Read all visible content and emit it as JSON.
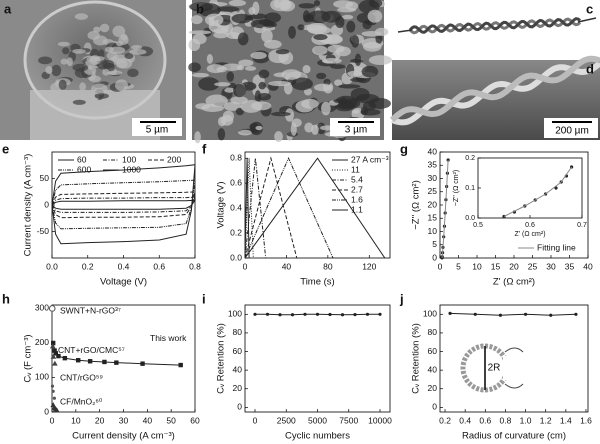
{
  "panel_labels": [
    "a",
    "b",
    "c",
    "d",
    "e",
    "f",
    "g",
    "h",
    "i",
    "j"
  ],
  "scale_bars": [
    "5 µm",
    "3 µm",
    "200 µm"
  ],
  "inset_label": "2R",
  "chart_data": [
    {
      "type": "line",
      "xlabel": "Voltage (V)",
      "ylabel": "Current density (A cm⁻³)",
      "xlim": [
        0,
        0.8
      ],
      "xticks": [
        {
          "value": 0,
          "label": "0.0"
        },
        0.2,
        0.4,
        0.6,
        0.8
      ],
      "ylim": [
        -100,
        100
      ],
      "yticks": [
        -50,
        0,
        50
      ],
      "legend": "top",
      "x": [
        0,
        0.02,
        0.05,
        0.2,
        0.4,
        0.6,
        0.75,
        0.8,
        0.78,
        0.75,
        0.6,
        0.4,
        0.2,
        0.05,
        0.02,
        0
      ],
      "series": [
        {
          "name": "60",
          "color": "#222",
          "style": "solid",
          "values": [
            0,
            5,
            7,
            7,
            8,
            8,
            8,
            9,
            -1,
            -6,
            -8,
            -8,
            -8,
            -8,
            -6,
            0
          ]
        },
        {
          "name": "100",
          "color": "#222",
          "style": "dashdot",
          "values": [
            0,
            9,
            12,
            13,
            13,
            14,
            14,
            15,
            -2,
            -11,
            -13,
            -14,
            -14,
            -14,
            -11,
            0
          ]
        },
        {
          "name": "200",
          "color": "#222",
          "style": "dashed",
          "values": [
            0,
            15,
            20,
            21,
            22,
            23,
            24,
            25,
            -3,
            -18,
            -22,
            -23,
            -23,
            -24,
            -18,
            0
          ]
        },
        {
          "name": "600",
          "color": "#222",
          "style": "dashdotdot",
          "values": [
            0,
            28,
            38,
            40,
            42,
            44,
            46,
            47,
            -6,
            -35,
            -42,
            -43,
            -44,
            -45,
            -34,
            0
          ]
        },
        {
          "name": "1000",
          "color": "#222",
          "style": "solid",
          "values": [
            0,
            45,
            60,
            63,
            66,
            70,
            74,
            76,
            -10,
            -55,
            -66,
            -69,
            -71,
            -73,
            -55,
            0
          ]
        }
      ]
    },
    {
      "type": "line",
      "xlabel": "Time (s)",
      "ylabel": "Voltage (V)",
      "xlim": [
        0,
        140
      ],
      "xticks": [
        0,
        40,
        80,
        120
      ],
      "ylim": [
        0,
        0.85
      ],
      "yticks": [
        {
          "value": 0,
          "label": "0.0"
        },
        0.2,
        0.4,
        0.6,
        0.8
      ],
      "legend": "top-right",
      "series": [
        {
          "name": "27 A cm⁻³",
          "color": "#222",
          "style": "solid",
          "x": [
            0,
            2,
            4
          ],
          "values": [
            0,
            0.8,
            0
          ]
        },
        {
          "name": "11",
          "color": "#222",
          "style": "dotted",
          "x": [
            0,
            4,
            8
          ],
          "values": [
            0,
            0.8,
            0
          ]
        },
        {
          "name": "5.4",
          "color": "#222",
          "style": "dashdot",
          "x": [
            0,
            10,
            20
          ],
          "values": [
            0,
            0.8,
            0
          ]
        },
        {
          "name": "2.7",
          "color": "#222",
          "style": "dashed",
          "x": [
            0,
            25,
            50
          ],
          "values": [
            0,
            0.8,
            0
          ]
        },
        {
          "name": "1.6",
          "color": "#222",
          "style": "dashdotdot",
          "x": [
            0,
            42,
            85
          ],
          "values": [
            0,
            0.8,
            0
          ]
        },
        {
          "name": "1.1",
          "color": "#222",
          "style": "solid",
          "x": [
            0,
            70,
            135
          ],
          "values": [
            0,
            0.8,
            0
          ]
        }
      ]
    },
    {
      "type": "scatter",
      "xlabel": "Z' (Ω cm²)",
      "ylabel": "−Z'' (Ω cm²)",
      "xlim": [
        0,
        40
      ],
      "xticks": [
        0,
        5,
        10,
        15,
        20,
        25,
        30,
        35,
        40
      ],
      "ylim": [
        0,
        40
      ],
      "yticks": [
        0,
        5,
        10,
        15,
        20,
        25,
        30,
        35,
        40
      ],
      "legend": "bottom-right",
      "series": [
        {
          "color": "#222",
          "marker": "circle",
          "x": [
            0.55,
            0.6,
            0.7,
            0.8,
            1.0,
            1.2,
            1.4,
            1.6,
            1.8,
            2.0,
            2.2
          ],
          "values": [
            0.05,
            0.5,
            2,
            4,
            8,
            12,
            17,
            22,
            27,
            32,
            37
          ]
        },
        {
          "name": "Fitting line",
          "color": "#888",
          "style": "solid",
          "x": [
            0.55,
            0.7,
            1.0,
            1.4,
            1.8,
            2.2
          ],
          "values": [
            0,
            2,
            8,
            17,
            27,
            37
          ]
        }
      ],
      "inset": {
        "type": "scatter",
        "xlabel": "Z' (Ω cm²)",
        "ylabel": "−Z'' (Ω cm²)",
        "xlim": [
          0.5,
          0.7
        ],
        "xticks": [
          0.5,
          0.6,
          0.7
        ],
        "ylim": [
          0,
          0.2
        ],
        "yticks": [
          {
            "value": 0,
            "label": "0.0"
          },
          0.1,
          0.2
        ],
        "series": [
          {
            "color": "#222",
            "marker": "circle",
            "x": [
              0.55,
              0.57,
              0.59,
              0.61,
              0.63,
              0.65,
              0.66,
              0.67,
              0.68
            ],
            "values": [
              0.005,
              0.02,
              0.04,
              0.06,
              0.08,
              0.1,
              0.12,
              0.14,
              0.17
            ]
          },
          {
            "color": "#888",
            "style": "solid",
            "x": [
              0.55,
              0.59,
              0.63,
              0.66,
              0.68
            ],
            "values": [
              0.005,
              0.04,
              0.08,
              0.12,
              0.17
            ]
          }
        ]
      }
    },
    {
      "type": "scatter",
      "xlabel": "Current density (A cm⁻³)",
      "ylabel": "Cᵥ (F cm⁻³)",
      "xlim": [
        0,
        60
      ],
      "xticks": [
        0,
        10,
        20,
        30,
        40,
        50,
        60
      ],
      "ylim": [
        0,
        310
      ],
      "yticks": [
        0,
        100,
        200,
        300
      ],
      "legend": "annotate",
      "series": [
        {
          "name": "This work",
          "color": "#222",
          "marker": "square",
          "style": "solid",
          "x": [
            0.5,
            1.1,
            1.6,
            2.7,
            5.4,
            11,
            16,
            22,
            27,
            38,
            54
          ],
          "values": [
            200,
            178,
            170,
            162,
            156,
            150,
            147,
            145,
            143,
            140,
            136
          ]
        },
        {
          "name": "SWNT+N-rGO³⁷",
          "color": "#555",
          "marker": "open-circle",
          "x": [
            0.1
          ],
          "values": [
            300
          ]
        },
        {
          "name": "CNT+rGO/CMC⁵⁷",
          "color": "#444",
          "marker": "triangle",
          "x": [
            0.3,
            0.6,
            1.2
          ],
          "values": [
            190,
            160,
            140
          ]
        },
        {
          "name": "CNT/rGO⁵⁹",
          "color": "#555",
          "marker": "circle",
          "x": [
            0.2,
            0.5,
            1
          ],
          "values": [
            75,
            60,
            40
          ]
        },
        {
          "name": "CF/MnO₂⁶⁰",
          "color": "#333",
          "marker": "triangle",
          "x": [
            0.5,
            1,
            1.5,
            2
          ],
          "values": [
            20,
            12,
            8,
            5
          ]
        }
      ]
    },
    {
      "type": "line",
      "xlabel": "Cyclic numbers",
      "ylabel": "Cᵥ Retention (%)",
      "xlim": [
        -800,
        10800
      ],
      "xticks": [
        0,
        2500,
        5000,
        7500,
        10000
      ],
      "ylim": [
        -5,
        110
      ],
      "yticks": [
        0,
        20,
        40,
        60,
        80,
        100
      ],
      "series": [
        {
          "color": "#222",
          "style": "solid",
          "marker": "circle",
          "x": [
            0,
            1000,
            2000,
            3000,
            4000,
            5000,
            6000,
            7000,
            8000,
            9000,
            10000
          ],
          "values": [
            100,
            100,
            99.5,
            99.5,
            100,
            100,
            99.8,
            99.5,
            99.7,
            100,
            100
          ]
        }
      ]
    },
    {
      "type": "line",
      "xlabel": "Radius of curvature (cm)",
      "ylabel": "Cᵥ Retention (%)",
      "xlim": [
        0.15,
        1.62
      ],
      "xticks": [
        0.2,
        0.4,
        0.6,
        0.8,
        {
          "value": 1,
          "label": "1.0"
        },
        1.2,
        1.4,
        1.6
      ],
      "ylim": [
        -5,
        110
      ],
      "yticks": [
        0,
        20,
        40,
        60,
        80,
        100
      ],
      "series": [
        {
          "color": "#222",
          "style": "solid",
          "marker": "circle",
          "x": [
            0.25,
            0.5,
            0.75,
            1.0,
            1.25,
            1.5
          ],
          "values": [
            101,
            100,
            99,
            100,
            99,
            100
          ]
        }
      ]
    }
  ]
}
